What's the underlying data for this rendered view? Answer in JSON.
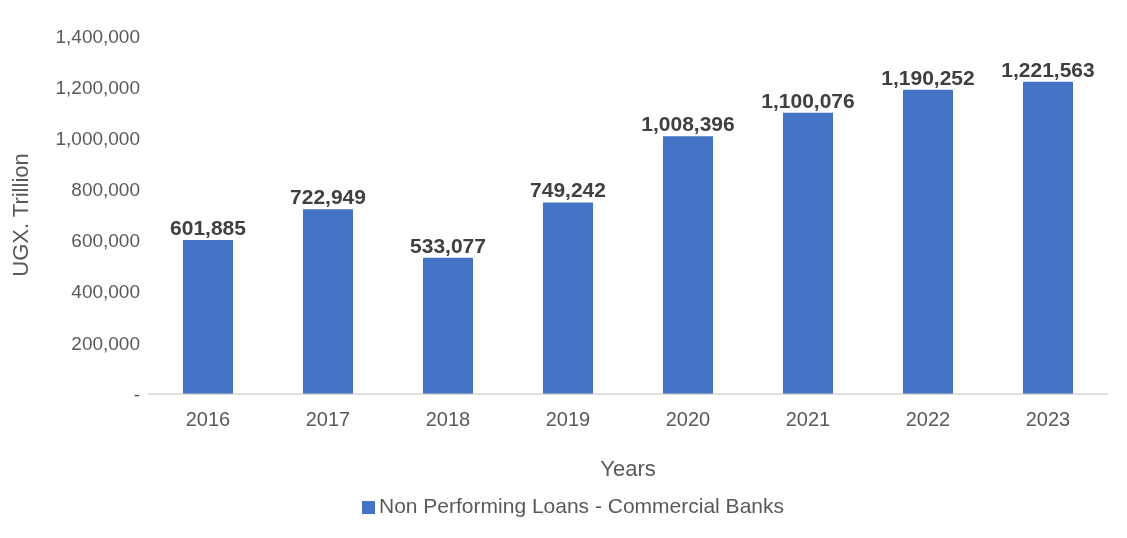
{
  "chart_data": {
    "type": "bar",
    "xlabel": "Years",
    "ylabel": "UGX. Trillion",
    "categories": [
      "2016",
      "2017",
      "2018",
      "2019",
      "2020",
      "2021",
      "2022",
      "2023"
    ],
    "series": [
      {
        "name": "Non Performing Loans - Commercial Banks",
        "color": "#4472c4",
        "values": [
          601885,
          722949,
          533077,
          749242,
          1008396,
          1100076,
          1190252,
          1221563
        ],
        "value_labels": [
          "601,885",
          "722,949",
          "533,077",
          "749,242",
          "1,008,396",
          "1,100,076",
          "1,190,252",
          "1,221,563"
        ]
      }
    ],
    "ylim": [
      0,
      1400000
    ],
    "yticks": [
      {
        "value": 0,
        "label": "-"
      },
      {
        "value": 200000,
        "label": "200,000"
      },
      {
        "value": 400000,
        "label": "400,000"
      },
      {
        "value": 600000,
        "label": "600,000"
      },
      {
        "value": 800000,
        "label": "800,000"
      },
      {
        "value": 1000000,
        "label": "1,000,000"
      },
      {
        "value": 1200000,
        "label": "1,200,000"
      },
      {
        "value": 1400000,
        "label": "1,400,000"
      }
    ],
    "grid": false,
    "legend": "bottom"
  }
}
